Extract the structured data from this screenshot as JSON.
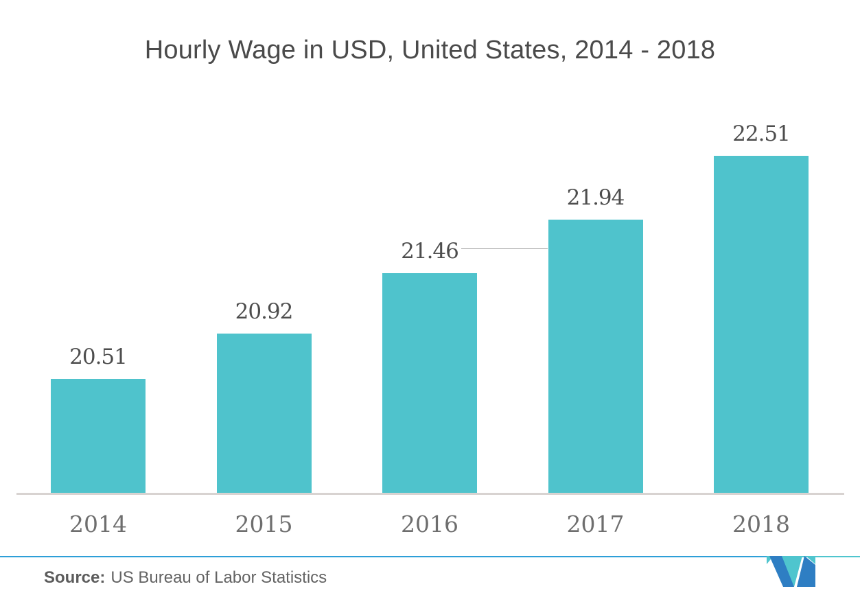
{
  "chart_data": {
    "type": "bar",
    "title": "Hourly Wage in USD, United States, 2014 - 2018",
    "categories": [
      "2014",
      "2015",
      "2016",
      "2017",
      "2018"
    ],
    "values": [
      20.51,
      20.92,
      21.46,
      21.94,
      22.51
    ],
    "value_labels": [
      "20.51",
      "20.92",
      "21.46",
      "21.94",
      "22.51"
    ],
    "xlabel": "",
    "ylabel": "",
    "ylim": [
      19.49,
      23.04
    ],
    "grid": false,
    "legend": "none",
    "bar_color": "#4FC3CC",
    "value_label_color": "#4D4D4D",
    "tick_label_color": "#6E6E6E"
  },
  "footer": {
    "source_label": "Source:",
    "source_text": "US Bureau of Labor Statistics",
    "logo_name": "mordor-intelligence-logo"
  },
  "branding": {
    "accent_blue": "#2D9FD8",
    "logo_blue": "#2E7EC3",
    "logo_teal": "#4FC5CE"
  }
}
